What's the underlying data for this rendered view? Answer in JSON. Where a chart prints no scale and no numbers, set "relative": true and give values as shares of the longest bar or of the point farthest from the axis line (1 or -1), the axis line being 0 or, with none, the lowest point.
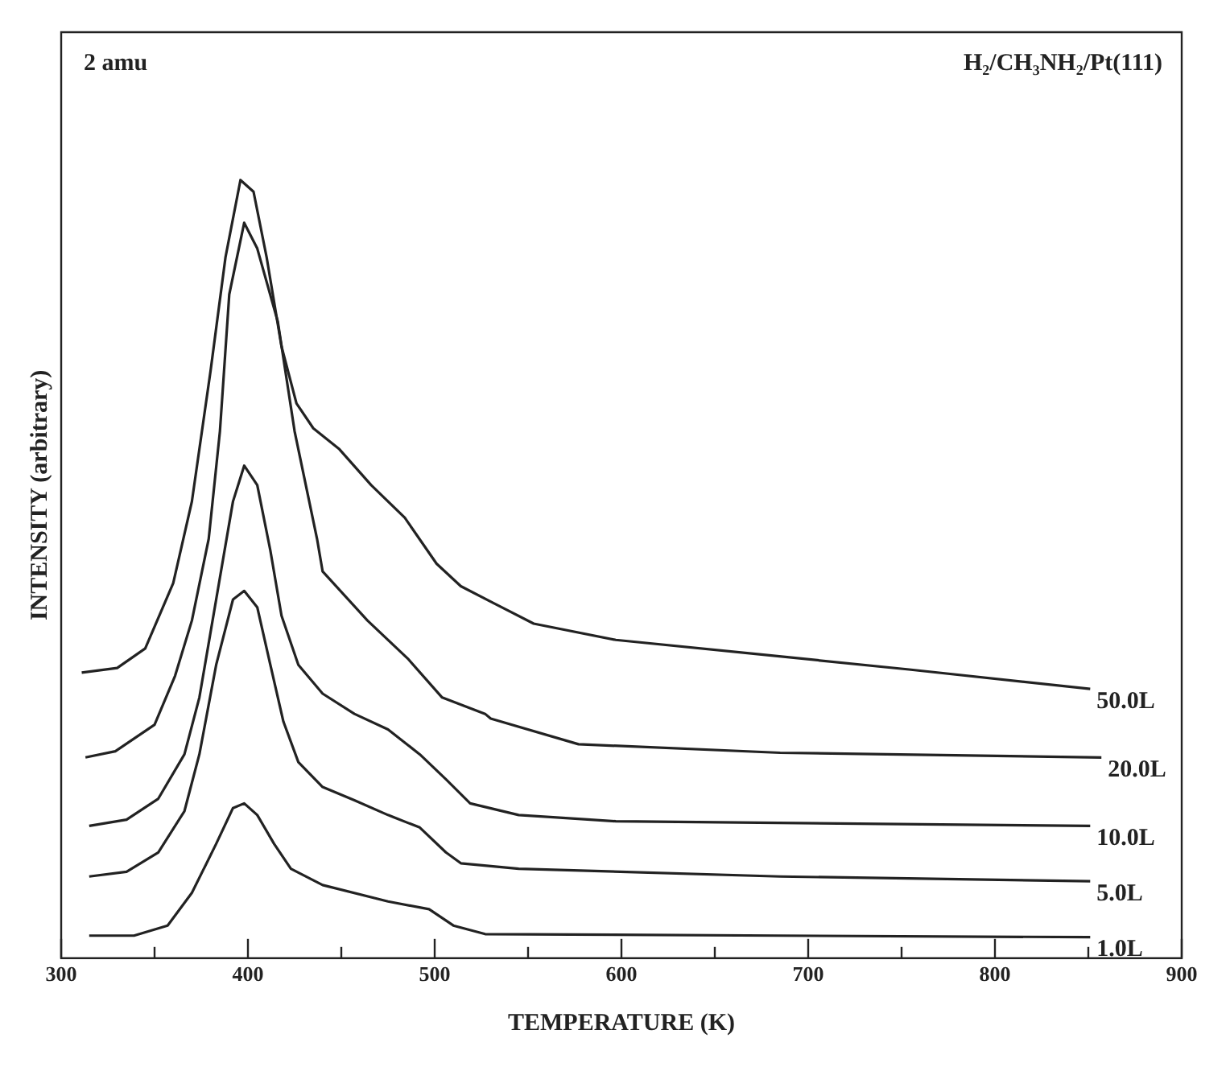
{
  "chart_data": {
    "type": "line",
    "xlabel": "TEMPERATURE (K)",
    "ylabel": "INTENSITY (arbitrary)",
    "relative": true,
    "marker": "none",
    "line_style": "solid",
    "legend": false,
    "annotations": [
      "2 amu",
      "H₂/CH₃NH₂/Pt(111)"
    ],
    "xlim": [
      300,
      900
    ],
    "xticks": [
      300,
      {
        "value": 350,
        "label": null
      },
      400,
      {
        "value": 450,
        "label": null
      },
      500,
      {
        "value": 550,
        "label": null
      },
      600,
      {
        "value": 650,
        "label": null
      },
      700,
      {
        "value": 750,
        "label": null
      },
      800,
      {
        "value": 850,
        "label": null
      },
      900
    ],
    "series": [
      {
        "name": "50.0L",
        "color": "#222222",
        "x": [
          311,
          330,
          345,
          360,
          370,
          380,
          388,
          396,
          403,
          410,
          418,
          426,
          435,
          449,
          466,
          484,
          501,
          514,
          531,
          553,
          597,
          676,
          754,
          851
        ],
        "values": [
          0.367,
          0.373,
          0.398,
          0.482,
          0.587,
          0.755,
          0.901,
          1.0,
          0.985,
          0.901,
          0.786,
          0.713,
          0.681,
          0.654,
          0.608,
          0.566,
          0.507,
          0.478,
          0.457,
          0.43,
          0.409,
          0.39,
          0.371,
          0.346
        ]
      },
      {
        "name": "20.0L",
        "color": "#222222",
        "x": [
          313,
          329,
          350,
          361,
          370,
          379,
          385,
          390,
          398,
          405,
          416,
          425,
          437,
          440,
          464,
          486,
          504,
          527,
          530,
          577,
          685,
          857
        ],
        "values": [
          0.258,
          0.266,
          0.3,
          0.363,
          0.434,
          0.539,
          0.677,
          0.853,
          0.945,
          0.912,
          0.818,
          0.677,
          0.539,
          0.497,
          0.434,
          0.384,
          0.335,
          0.314,
          0.308,
          0.275,
          0.264,
          0.258
        ]
      },
      {
        "name": "10.0L",
        "color": "#222222",
        "x": [
          315,
          335,
          352,
          366,
          374,
          383,
          392,
          398,
          405,
          412,
          418,
          427,
          440,
          457,
          475,
          492,
          506,
          519,
          545,
          597,
          851
        ],
        "values": [
          0.17,
          0.178,
          0.205,
          0.262,
          0.335,
          0.461,
          0.587,
          0.633,
          0.608,
          0.524,
          0.44,
          0.377,
          0.34,
          0.314,
          0.294,
          0.262,
          0.23,
          0.199,
          0.184,
          0.176,
          0.17
        ]
      },
      {
        "name": "5.0L",
        "color": "#222222",
        "x": [
          315,
          335,
          352,
          366,
          374,
          383,
          392,
          398,
          405,
          412,
          419,
          427,
          440,
          457,
          475,
          492,
          506,
          514,
          545,
          685,
          851
        ],
        "values": [
          0.105,
          0.111,
          0.136,
          0.189,
          0.262,
          0.377,
          0.461,
          0.472,
          0.451,
          0.377,
          0.304,
          0.252,
          0.22,
          0.203,
          0.184,
          0.168,
          0.136,
          0.122,
          0.115,
          0.105,
          0.099
        ]
      },
      {
        "name": "1.0L",
        "color": "#222222",
        "x": [
          315,
          339,
          357,
          370,
          383,
          392,
          398,
          405,
          414,
          423,
          440,
          475,
          497,
          510,
          527,
          685,
          851
        ],
        "values": [
          0.029,
          0.029,
          0.042,
          0.084,
          0.147,
          0.193,
          0.199,
          0.184,
          0.147,
          0.115,
          0.094,
          0.073,
          0.063,
          0.042,
          0.031,
          0.029,
          0.027
        ]
      }
    ]
  }
}
